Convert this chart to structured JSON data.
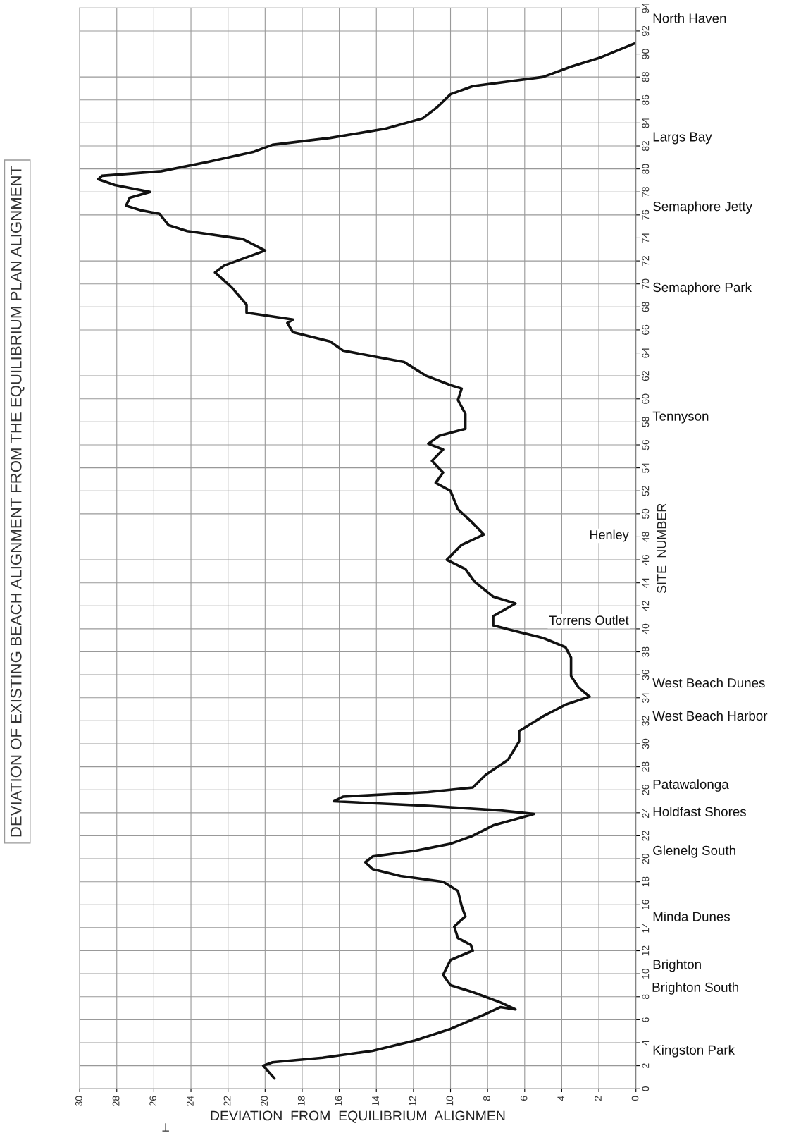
{
  "chart_data": {
    "type": "line",
    "title": "DEVIATION OF EXISTING BEACH ALIGNMENT FROM THE EQUILIBRIUM PLAN ALIGNMENT",
    "xlabel": "DEVIATION  FROM  EQUILIBRIUM  ALIGNMEN",
    "ylabel": "SITE  NUMBER",
    "xlim": [
      30,
      0
    ],
    "xticks": [
      30,
      28,
      26,
      24,
      22,
      20,
      18,
      16,
      14,
      12,
      10,
      8,
      6,
      4,
      2,
      0
    ],
    "ylim": [
      0,
      94
    ],
    "yticks": [
      0,
      2,
      4,
      6,
      8,
      10,
      12,
      14,
      16,
      18,
      20,
      22,
      24,
      26,
      28,
      30,
      32,
      34,
      36,
      38,
      40,
      42,
      44,
      46,
      48,
      50,
      52,
      54,
      56,
      58,
      60,
      62,
      64,
      66,
      68,
      70,
      72,
      74,
      76,
      78,
      80,
      82,
      84,
      86,
      88,
      90,
      92,
      94
    ],
    "grid": true,
    "line_style": "solid",
    "marker": "none",
    "series": [
      {
        "color": "#111111",
        "x": [
          19.5,
          20.1,
          19.6,
          16.9,
          14.2,
          11.9,
          10.0,
          8.1,
          7.3,
          6.5,
          7.3,
          8.8,
          10.0,
          10.4,
          10.0,
          8.8,
          8.9,
          9.6,
          9.8,
          9.2,
          9.4,
          9.6,
          10.4,
          12.7,
          14.2,
          14.6,
          14.2,
          11.9,
          10.0,
          8.8,
          7.7,
          5.5,
          7.3,
          11.2,
          16.3,
          15.8,
          11.2,
          8.8,
          8.1,
          6.9,
          6.3,
          6.3,
          5.0,
          3.8,
          2.5,
          3.1,
          3.5,
          3.5,
          3.8,
          5.0,
          6.5,
          7.7,
          7.7,
          6.5,
          7.7,
          8.7,
          9.2,
          10.2,
          9.4,
          8.2,
          8.8,
          9.6,
          10.0,
          10.8,
          10.4,
          11.0,
          10.4,
          11.2,
          10.6,
          9.2,
          9.2,
          9.6,
          9.4,
          10.0,
          11.3,
          12.5,
          15.8,
          16.5,
          18.5,
          18.8,
          18.5,
          21.0,
          21.0,
          21.8,
          22.7,
          22.2,
          20.0,
          21.2,
          24.2,
          25.2,
          25.7,
          26.7,
          27.5,
          27.3,
          26.2,
          28.1,
          29.0,
          28.8,
          25.6,
          23.1,
          20.6,
          19.6,
          16.5,
          13.5,
          11.5,
          10.7,
          10.0,
          8.8,
          5.0,
          3.5,
          1.9,
          0.1
        ],
        "values": [
          0.9,
          2.0,
          2.3,
          2.7,
          3.3,
          4.2,
          5.2,
          6.5,
          7.1,
          6.9,
          7.5,
          8.4,
          9.0,
          9.9,
          11.2,
          12.0,
          12.5,
          13.1,
          14.1,
          15.0,
          15.9,
          17.2,
          18.0,
          18.5,
          19.1,
          19.7,
          20.2,
          20.7,
          21.3,
          22.0,
          22.9,
          23.9,
          24.2,
          24.6,
          25.0,
          25.4,
          25.8,
          26.2,
          27.3,
          28.6,
          30.2,
          31.1,
          32.4,
          33.4,
          34.1,
          34.9,
          35.9,
          37.5,
          38.4,
          39.2,
          39.8,
          40.3,
          41.1,
          42.2,
          42.8,
          44.1,
          45.2,
          46.0,
          47.3,
          48.2,
          49.2,
          50.4,
          52.0,
          52.7,
          53.6,
          54.6,
          55.6,
          56.1,
          56.8,
          57.4,
          58.7,
          59.9,
          60.9,
          61.2,
          62.0,
          63.2,
          64.2,
          65.0,
          65.8,
          66.6,
          66.9,
          67.5,
          68.2,
          69.7,
          71.0,
          71.6,
          72.9,
          73.9,
          74.6,
          75.1,
          76.1,
          76.4,
          76.8,
          77.5,
          78.0,
          78.6,
          79.1,
          79.4,
          79.8,
          80.6,
          81.5,
          82.1,
          82.7,
          83.5,
          84.4,
          85.4,
          86.5,
          87.2,
          88.0,
          88.9,
          89.7,
          90.9
        ]
      }
    ],
    "annotations": [
      "Kingston Park",
      "Brighton South",
      "Brighton",
      "Minda Dunes",
      "Glenelg South",
      "Holdfast Shores",
      "Patawalonga",
      "West Beach Harbor",
      "West Beach Dunes",
      "Torrens Outlet",
      "Henley",
      "Tennyson",
      "Semaphore Park",
      "Semaphore Jetty",
      "Largs Bay",
      "North Haven",
      "T"
    ]
  }
}
